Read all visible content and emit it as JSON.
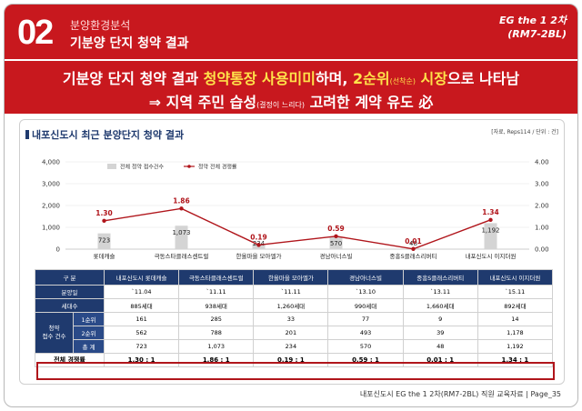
{
  "header": {
    "section_number": "02",
    "section_subtitle": "분양환경분석",
    "section_title": "기분양 단지 청약 결과",
    "doc_title_line1": "EG the 1 2차",
    "doc_title_line2": "(RM7-2BL)"
  },
  "headline": {
    "line1_a": "기분양 단지 청약 결과 ",
    "line1_b": "청약통장 사용미미",
    "line1_c": "하며, ",
    "line1_d": "2순위",
    "line1_e": "(선착순)",
    "line1_f": " 시장",
    "line1_g": "으로 나타남",
    "line2_a": "⇒ 지역 주민 습성",
    "line2_b": "(결정이 느리다)",
    "line2_c": " 고려한 계약 유도 ",
    "line2_d": "必"
  },
  "content": {
    "title": "내포신도시 최근 분양단지 청약 결과",
    "source": "[자료, Reps114 / 단위 : 건]"
  },
  "chart_data": {
    "type": "bar",
    "categories": [
      "롯데캐슬",
      "극동스타클래스센트럴",
      "한올마을 모아엘가",
      "경남아너스빌",
      "중흥S클래스리버티",
      "내포신도시 이지더원"
    ],
    "series": [
      {
        "name": "전체 청약 접수건수",
        "type": "bar",
        "axis": "left",
        "values": [
          723,
          1073,
          234,
          570,
          48,
          1192
        ],
        "labels": [
          "723",
          "1,073",
          "234",
          "570",
          "48",
          "1,192"
        ]
      },
      {
        "name": "청약 전체 경쟁률",
        "type": "line",
        "axis": "right",
        "values": [
          1.3,
          1.86,
          0.19,
          0.59,
          0.01,
          1.34
        ],
        "labels": [
          "1.30",
          "1.86",
          "0.19",
          "0.59",
          "0.01",
          "1.34"
        ]
      }
    ],
    "y_left_ticks": [
      "0",
      "1,000",
      "2,000",
      "3,000",
      "4,000"
    ],
    "y_right_ticks": [
      "0.00",
      "1.00",
      "2.00",
      "3.00",
      "4.00"
    ],
    "ylim_left": [
      0,
      4000
    ],
    "ylim_right": [
      0,
      4
    ],
    "legend_position": "top-left",
    "bar_color": "#d4d4d4",
    "line_color": "#b0151b"
  },
  "table": {
    "header_label": "구 분",
    "columns": [
      "내포신도시 롯데캐슬",
      "극동스타클래스센트럴",
      "한올마을 모아엘가",
      "경남아너스빌",
      "중흥S클래스리버티",
      "내포신도시 이지더원"
    ],
    "rows": {
      "sale_date": {
        "label": "분양일",
        "values": [
          "`11.04",
          "`11.11",
          "`11.11",
          "`13.10",
          "`13.11",
          "`15.11"
        ]
      },
      "households": {
        "label": "세대수",
        "values": [
          "885세대",
          "938세대",
          "1,260세대",
          "990세대",
          "1,660세대",
          "892세대"
        ]
      },
      "group_label": "청약\n접수 건수",
      "rank1": {
        "label": "1순위",
        "values": [
          "161",
          "285",
          "33",
          "77",
          "9",
          "14"
        ]
      },
      "rank2": {
        "label": "2순위",
        "values": [
          "562",
          "788",
          "201",
          "493",
          "39",
          "1,178"
        ]
      },
      "total": {
        "label": "총 계",
        "values": [
          "723",
          "1,073",
          "234",
          "570",
          "48",
          "1,192"
        ]
      },
      "competition": {
        "label": "전체 경쟁률",
        "values": [
          "1.30 : 1",
          "1.86 : 1",
          "0.19 : 1",
          "0.59 : 1",
          "0.01 : 1",
          "1.34 : 1"
        ]
      }
    }
  },
  "footer": {
    "text": "내포신도시 EG the 1 2차(RM7-2BL) 직원 교육자료 | Page_35"
  },
  "colors": {
    "brand_red": "#c8181e",
    "navy": "#1f3a6e",
    "highlight_yellow": "#ffe34a"
  }
}
